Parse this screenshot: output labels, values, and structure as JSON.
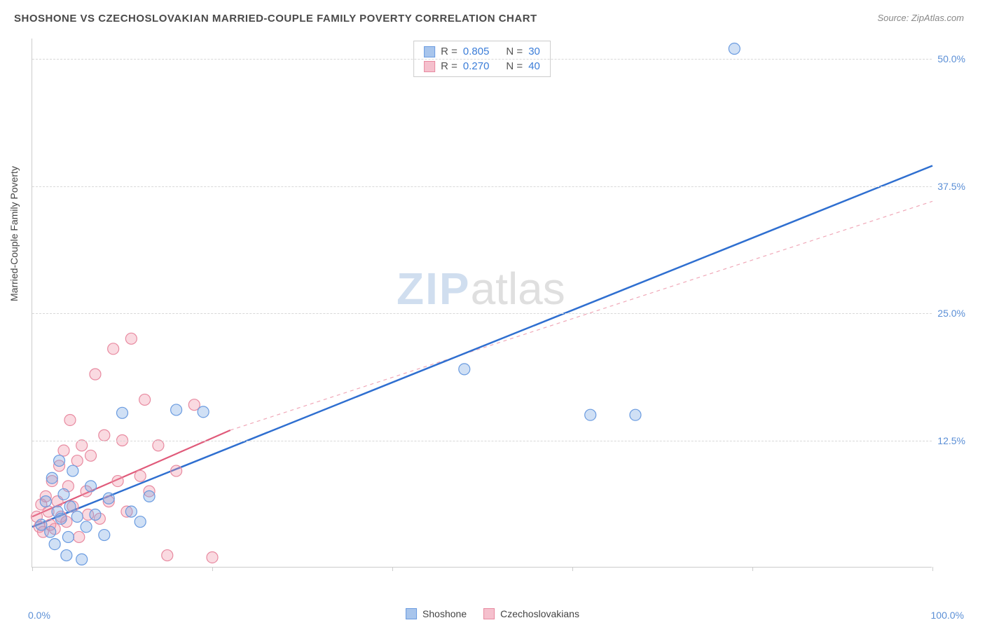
{
  "title": "SHOSHONE VS CZECHOSLOVAKIAN MARRIED-COUPLE FAMILY POVERTY CORRELATION CHART",
  "source_label": "Source: ZipAtlas.com",
  "y_axis_label": "Married-Couple Family Poverty",
  "watermark_zip": "ZIP",
  "watermark_atlas": "atlas",
  "chart": {
    "type": "scatter",
    "xlim": [
      0,
      100
    ],
    "ylim": [
      0,
      52
    ],
    "x_min_label": "0.0%",
    "x_max_label": "100.0%",
    "y_ticks": [
      {
        "v": 12.5,
        "label": "12.5%"
      },
      {
        "v": 25.0,
        "label": "25.0%"
      },
      {
        "v": 37.5,
        "label": "37.5%"
      },
      {
        "v": 50.0,
        "label": "50.0%"
      }
    ],
    "x_tick_positions": [
      0,
      20,
      40,
      60,
      80,
      100
    ],
    "background_color": "#ffffff",
    "grid_color": "#d8d8d8",
    "marker_radius": 8,
    "marker_stroke_width": 1.2,
    "series": [
      {
        "name": "Shoshone",
        "color_fill": "rgba(120,165,225,0.35)",
        "color_stroke": "#6a9be0",
        "swatch_fill": "#a8c5ec",
        "swatch_border": "#6a9be0",
        "R": "0.805",
        "N": "30",
        "trend": {
          "x1": 0,
          "y1": 4.0,
          "x2": 100,
          "y2": 39.5,
          "color": "#2f6fd0",
          "width": 2.5,
          "dash": "none",
          "solid_until_x": 100
        },
        "points": [
          [
            1,
            4.2
          ],
          [
            1.5,
            6.5
          ],
          [
            2,
            3.5
          ],
          [
            2.2,
            8.8
          ],
          [
            2.5,
            2.3
          ],
          [
            2.8,
            5.5
          ],
          [
            3,
            10.5
          ],
          [
            3.2,
            4.8
          ],
          [
            3.5,
            7.2
          ],
          [
            4,
            3.0
          ],
          [
            4.2,
            6.0
          ],
          [
            4.5,
            9.5
          ],
          [
            5,
            5.0
          ],
          [
            5.5,
            0.8
          ],
          [
            6,
            4.0
          ],
          [
            6.5,
            8.0
          ],
          [
            7,
            5.2
          ],
          [
            8,
            3.2
          ],
          [
            8.5,
            6.8
          ],
          [
            10,
            15.2
          ],
          [
            11,
            5.5
          ],
          [
            12,
            4.5
          ],
          [
            13,
            7.0
          ],
          [
            16,
            15.5
          ],
          [
            19,
            15.3
          ],
          [
            48,
            19.5
          ],
          [
            62,
            15.0
          ],
          [
            67,
            15.0
          ],
          [
            78,
            51.0
          ],
          [
            3.8,
            1.2
          ]
        ]
      },
      {
        "name": "Czechoslovakians",
        "color_fill": "rgba(240,150,170,0.35)",
        "color_stroke": "#e88aa0",
        "swatch_fill": "#f5c0cd",
        "swatch_border": "#e88aa0",
        "R": "0.270",
        "N": "40",
        "trend_solid": {
          "x1": 0,
          "y1": 5.0,
          "x2": 22,
          "y2": 13.5,
          "color": "#e05a7a",
          "width": 2.2
        },
        "trend_dashed": {
          "x1": 22,
          "y1": 13.5,
          "x2": 100,
          "y2": 36.0,
          "color": "#f0a8b8",
          "width": 1.2,
          "dash": "5,5"
        },
        "points": [
          [
            0.5,
            5.0
          ],
          [
            0.8,
            4.0
          ],
          [
            1,
            6.2
          ],
          [
            1.2,
            3.5
          ],
          [
            1.5,
            7.0
          ],
          [
            1.8,
            5.5
          ],
          [
            2,
            4.2
          ],
          [
            2.2,
            8.5
          ],
          [
            2.5,
            3.8
          ],
          [
            2.8,
            6.5
          ],
          [
            3,
            10.0
          ],
          [
            3.2,
            5.0
          ],
          [
            3.5,
            11.5
          ],
          [
            3.8,
            4.5
          ],
          [
            4,
            8.0
          ],
          [
            4.2,
            14.5
          ],
          [
            4.5,
            6.0
          ],
          [
            5,
            10.5
          ],
          [
            5.2,
            3.0
          ],
          [
            5.5,
            12.0
          ],
          [
            6,
            7.5
          ],
          [
            6.2,
            5.2
          ],
          [
            6.5,
            11.0
          ],
          [
            7,
            19.0
          ],
          [
            7.5,
            4.8
          ],
          [
            8,
            13.0
          ],
          [
            8.5,
            6.5
          ],
          [
            9,
            21.5
          ],
          [
            9.5,
            8.5
          ],
          [
            10,
            12.5
          ],
          [
            10.5,
            5.5
          ],
          [
            11,
            22.5
          ],
          [
            12,
            9.0
          ],
          [
            12.5,
            16.5
          ],
          [
            13,
            7.5
          ],
          [
            14,
            12.0
          ],
          [
            15,
            1.2
          ],
          [
            16,
            9.5
          ],
          [
            18,
            16.0
          ],
          [
            20,
            1.0
          ]
        ]
      }
    ]
  },
  "bottom_legend": {
    "series1_label": "Shoshone",
    "series2_label": "Czechoslovakians"
  },
  "stats_legend_labels": {
    "R": "R =",
    "N": "N ="
  }
}
